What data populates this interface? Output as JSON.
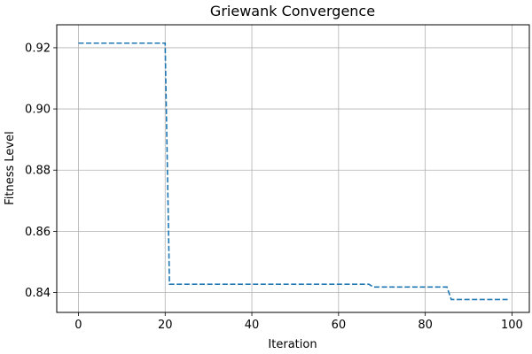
{
  "chart_data": {
    "type": "line",
    "title": "Griewank Convergence",
    "xlabel": "Iteration",
    "ylabel": "Fitness Level",
    "xlim": [
      -5,
      104
    ],
    "ylim": [
      0.8335,
      0.9275
    ],
    "xticks": [
      0,
      20,
      40,
      60,
      80,
      100
    ],
    "yticks": [
      0.84,
      0.86,
      0.88,
      0.9,
      0.92
    ],
    "xtick_labels": [
      "0",
      "20",
      "40",
      "60",
      "80",
      "100"
    ],
    "ytick_labels": [
      "0.84",
      "0.86",
      "0.88",
      "0.90",
      "0.92"
    ],
    "grid": true,
    "line_style": "dashed",
    "series": [
      {
        "color": "#1f77b4",
        "points": [
          [
            0,
            0.9215
          ],
          [
            20,
            0.9215
          ],
          [
            21,
            0.8427
          ],
          [
            67,
            0.8427
          ],
          [
            68,
            0.8418
          ],
          [
            85,
            0.8418
          ],
          [
            86,
            0.8377
          ],
          [
            99,
            0.8377
          ]
        ]
      }
    ]
  }
}
